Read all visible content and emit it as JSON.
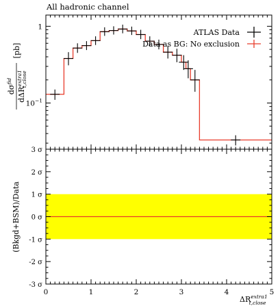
{
  "chart_data": {
    "type": "line",
    "title": "All hadronic channel",
    "xlabel": "ΔR",
    "xlabel_sup": "extra1",
    "xlabel_sub": "t,close",
    "ylabel": "dσ",
    "ylabel_sup": "fid",
    "ylabel_den_prefix": "dΔR",
    "ylabel_den_sup": "extra1",
    "ylabel_den_sub": "t,close",
    "ylabel_unit": "[pb]",
    "xlim": [
      0,
      5
    ],
    "ylim_log": [
      0.025,
      1.4
    ],
    "y_scale": "log",
    "x_ticks": [
      "0",
      "1",
      "2",
      "3",
      "4",
      "5"
    ],
    "y_ticks": [
      {
        "value": 1,
        "base": "1",
        "exp": ""
      },
      {
        "value": 0.1,
        "base": "10",
        "exp": "−1"
      }
    ],
    "legend_placement": "top-right",
    "legend": [
      {
        "label": "ATLAS Data",
        "color": "#000000"
      },
      {
        "label": "Data as BG: No exclusion",
        "color": "#e83b2a"
      }
    ],
    "bin_edges": [
      0,
      0.4,
      0.6,
      0.8,
      1.0,
      1.2,
      1.4,
      1.6,
      1.8,
      2.0,
      2.2,
      2.4,
      2.6,
      2.8,
      3.0,
      3.1,
      3.2,
      3.4,
      5.0
    ],
    "series": [
      {
        "name": "ATLAS Data",
        "x": [
          0.2,
          0.5,
          0.7,
          0.9,
          1.1,
          1.3,
          1.5,
          1.7,
          1.9,
          2.1,
          2.3,
          2.5,
          2.7,
          2.9,
          3.05,
          3.15,
          3.3,
          4.2
        ],
        "y": [
          0.13,
          0.38,
          0.52,
          0.56,
          0.65,
          0.85,
          0.88,
          0.92,
          0.87,
          0.78,
          0.64,
          0.58,
          0.46,
          0.42,
          0.34,
          0.28,
          0.2,
          0.033
        ],
        "err_lo": [
          0.02,
          0.07,
          0.07,
          0.07,
          0.08,
          0.1,
          0.1,
          0.11,
          0.1,
          0.1,
          0.09,
          0.08,
          0.08,
          0.08,
          0.07,
          0.07,
          0.06,
          0.005
        ],
        "err_hi": [
          0.02,
          0.08,
          0.08,
          0.08,
          0.09,
          0.12,
          0.12,
          0.13,
          0.12,
          0.12,
          0.1,
          0.09,
          0.09,
          0.09,
          0.08,
          0.08,
          0.07,
          0.005
        ]
      },
      {
        "name": "Data as BG: No exclusion",
        "values": [
          0.13,
          0.38,
          0.52,
          0.56,
          0.65,
          0.85,
          0.88,
          0.92,
          0.87,
          0.78,
          0.64,
          0.58,
          0.46,
          0.42,
          0.34,
          0.28,
          0.2,
          0.033
        ]
      }
    ],
    "ratio_panel": {
      "ylabel": "(Bkgd+BSM)/Data",
      "ylim": [
        -3,
        3
      ],
      "y_ticks": [
        {
          "value": 3,
          "label": "3 σ"
        },
        {
          "value": 2,
          "label": "2 σ"
        },
        {
          "value": 1,
          "label": "1 σ"
        },
        {
          "value": 0,
          "label": "0 σ"
        },
        {
          "value": -1,
          "label": "-1 σ"
        },
        {
          "value": -2,
          "label": "-2 σ"
        },
        {
          "value": -3,
          "label": "-3 σ"
        }
      ],
      "band": [
        -1,
        1
      ],
      "band_color": "#ffff00",
      "line_value": 0,
      "line_color": "#e83b2a"
    }
  }
}
